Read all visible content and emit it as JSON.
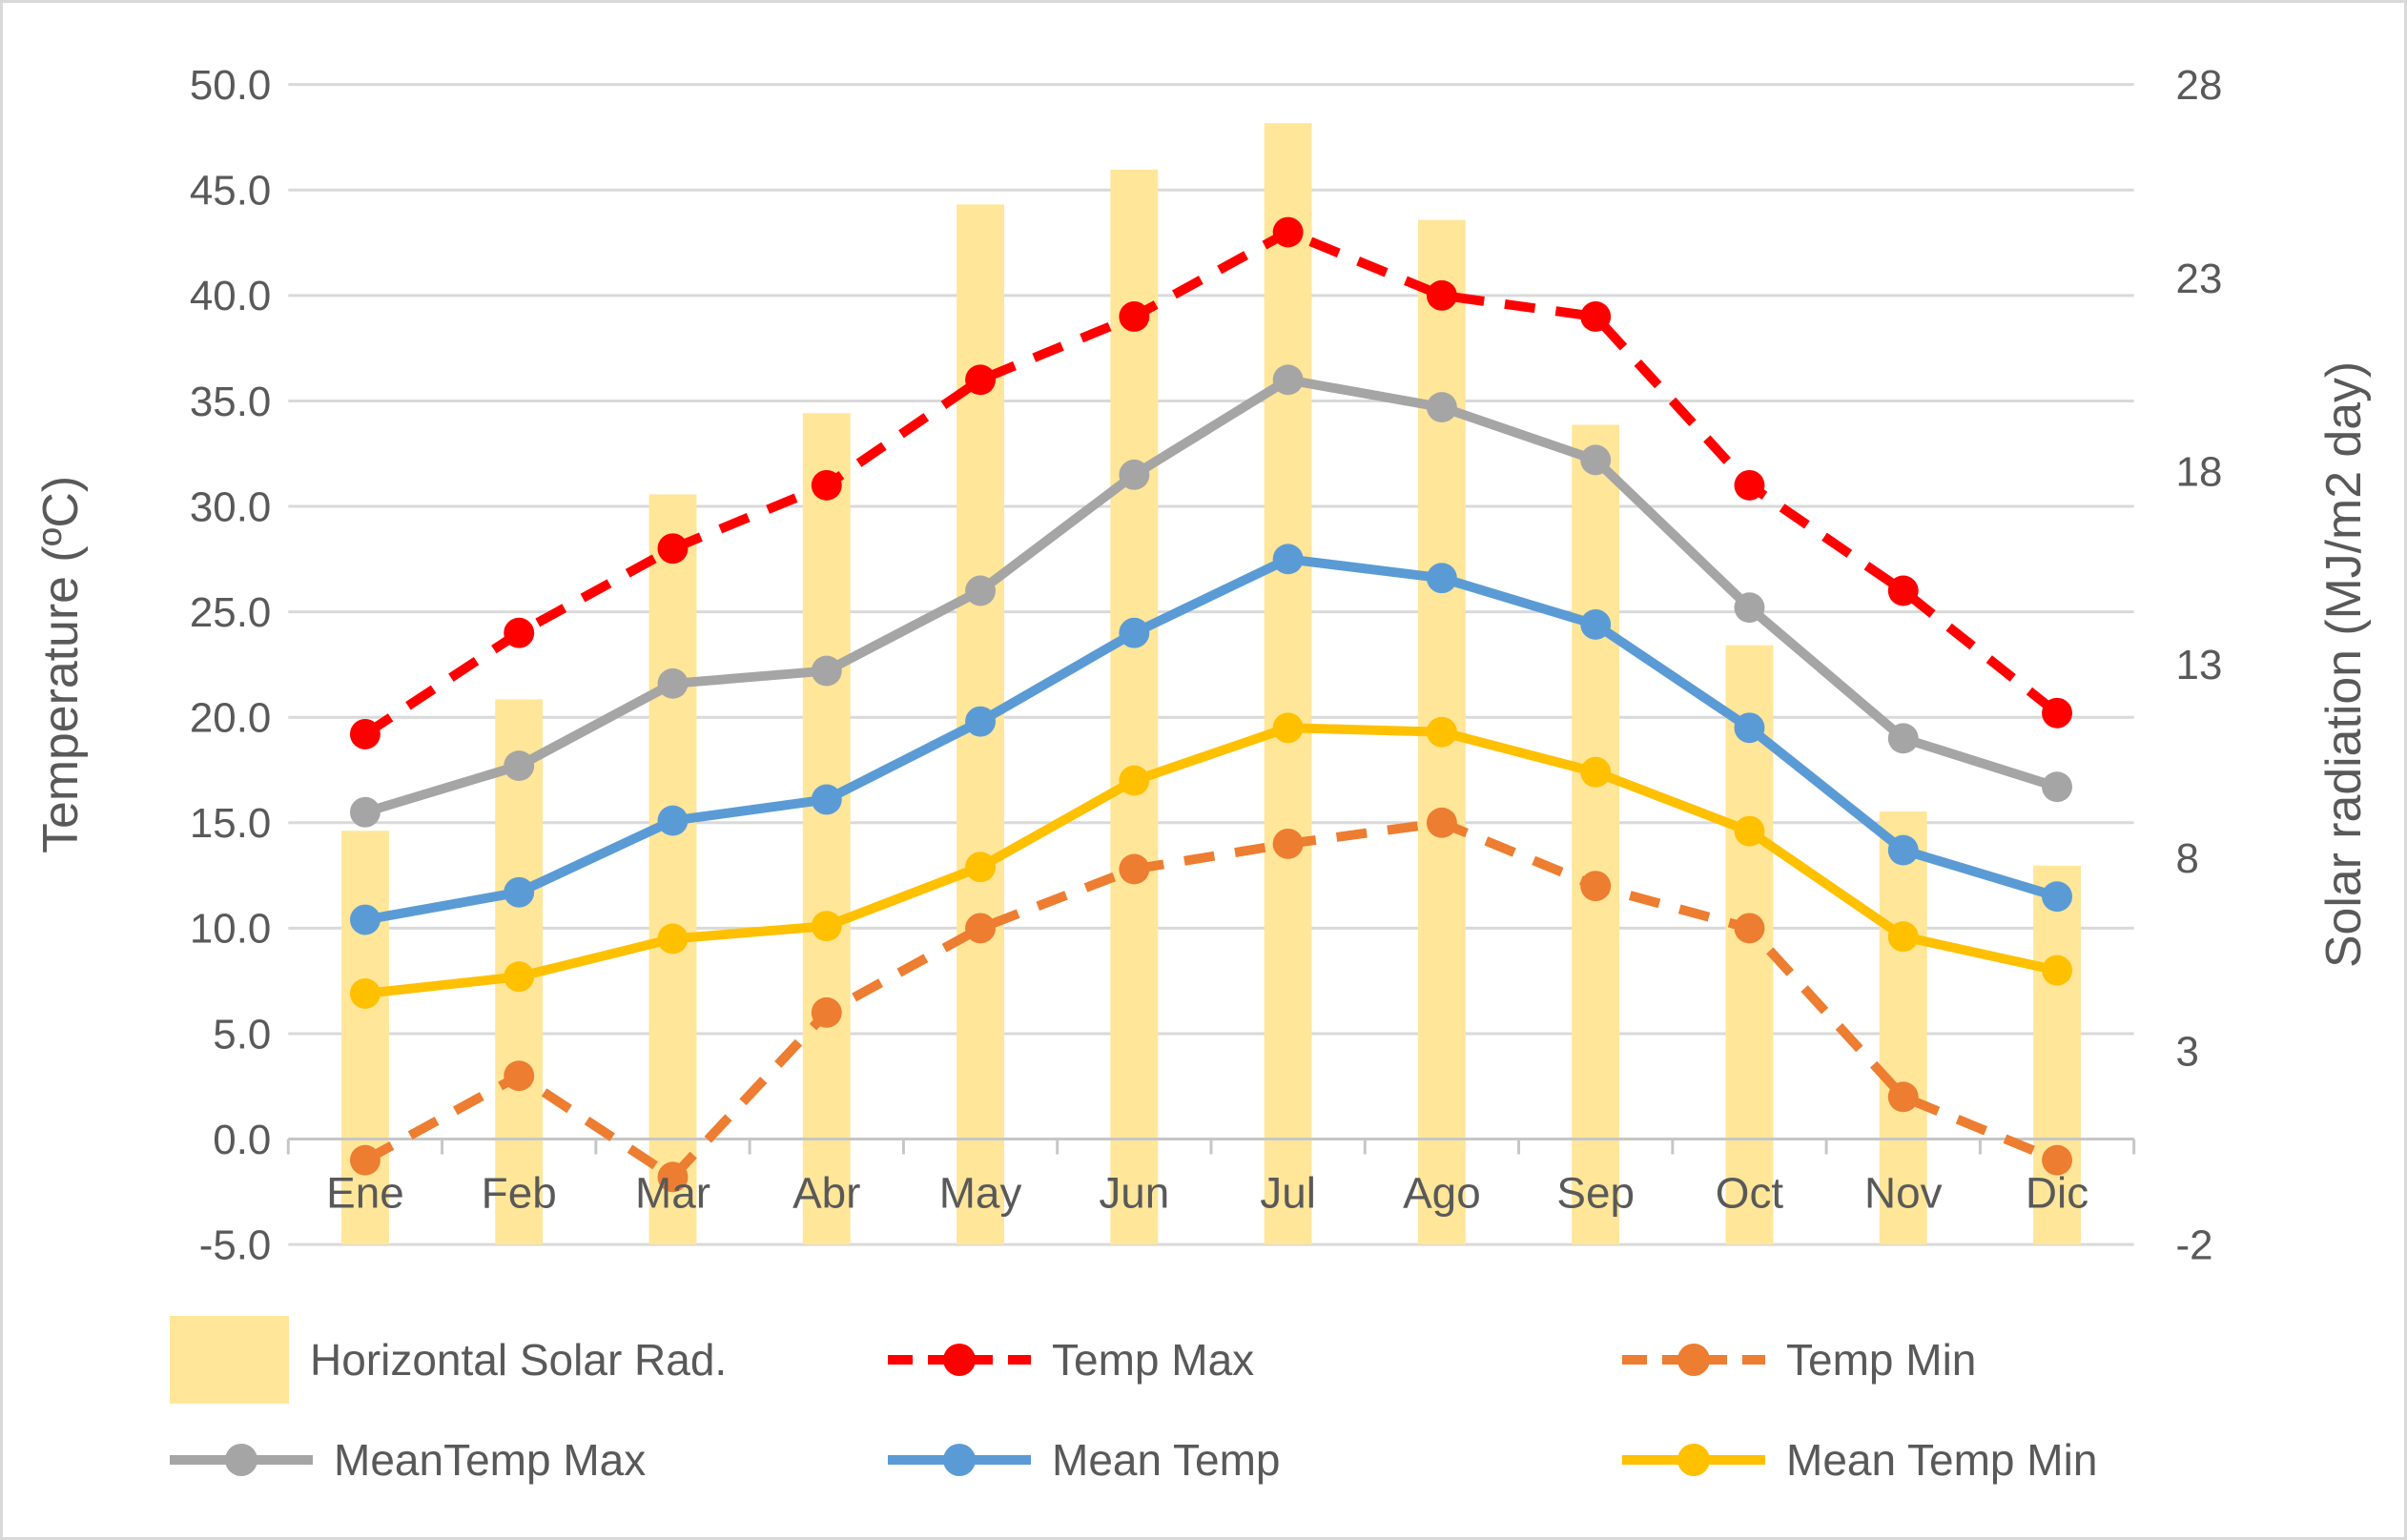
{
  "chart_data": {
    "type": "combo-bar-line",
    "title": "",
    "categories": [
      "Ene",
      "Feb",
      "Mar",
      "Abr",
      "May",
      "Jun",
      "Jul",
      "Ago",
      "Sep",
      "Oct",
      "Nov",
      "Dic"
    ],
    "left_axis": {
      "label": "Temperature (ºC)",
      "min": -5,
      "max": 50,
      "step": 5,
      "ticks": [
        "50.0",
        "45.0",
        "40.0",
        "35.0",
        "30.0",
        "25.0",
        "20.0",
        "15.0",
        "10.0",
        "5.0",
        "0.0",
        "-5.0"
      ]
    },
    "right_axis": {
      "label": "Solar radiation (MJ/m2 day)",
      "min": -2,
      "max": 28,
      "step": 5,
      "ticks": [
        "28",
        "23",
        "18",
        "13",
        "8",
        "3",
        "-2"
      ]
    },
    "grid": "horizontal-on",
    "legend_position": "bottom-two-rows",
    "series": [
      {
        "name": "Horizontal Solar Rad.",
        "type": "bar",
        "axis": "right",
        "dashed": false,
        "color": "#FFE699",
        "values": [
          8.7,
          12.1,
          17.4,
          19.5,
          24.9,
          25.8,
          27.0,
          24.5,
          19.2,
          13.5,
          9.2,
          7.8
        ]
      },
      {
        "name": "Temp Max",
        "type": "line",
        "axis": "left",
        "dashed": true,
        "color": "#FF0000",
        "values": [
          19.2,
          24.0,
          28.0,
          31.0,
          36.0,
          39.0,
          43.0,
          40.0,
          39.0,
          31.0,
          26.0,
          20.2
        ]
      },
      {
        "name": "Temp Min",
        "type": "line",
        "axis": "left",
        "dashed": true,
        "color": "#ED7D31",
        "values": [
          -1.0,
          3.0,
          -1.8,
          6.0,
          10.0,
          12.8,
          14.0,
          15.0,
          12.0,
          10.0,
          2.0,
          -1.0
        ]
      },
      {
        "name": "MeanTemp Max",
        "type": "line",
        "axis": "left",
        "dashed": false,
        "color": "#A5A5A5",
        "values": [
          15.5,
          17.7,
          21.6,
          22.2,
          26.0,
          31.5,
          36.0,
          34.7,
          32.2,
          25.2,
          19.0,
          16.7
        ]
      },
      {
        "name": "Mean Temp",
        "type": "line",
        "axis": "left",
        "dashed": false,
        "color": "#5B9BD5",
        "values": [
          10.4,
          11.7,
          15.1,
          16.1,
          19.8,
          24.0,
          27.5,
          26.6,
          24.4,
          19.5,
          13.7,
          11.5
        ]
      },
      {
        "name": "Mean Temp Min",
        "type": "line",
        "axis": "left",
        "dashed": false,
        "color": "#FFC000",
        "values": [
          6.9,
          7.7,
          9.5,
          10.1,
          12.9,
          17.0,
          19.5,
          19.3,
          17.4,
          14.6,
          9.6,
          8.0
        ]
      }
    ],
    "palette": {
      "gridline": "#D9D9D9",
      "axis_line": "#C6C6C6",
      "text": "#595959"
    },
    "legend_rows": [
      [
        0,
        1,
        2
      ],
      [
        3,
        4,
        5
      ]
    ]
  }
}
